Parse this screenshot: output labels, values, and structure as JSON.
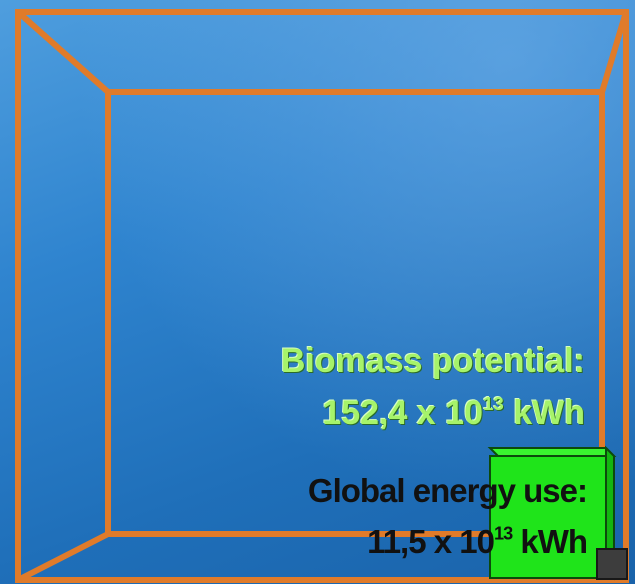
{
  "colors": {
    "large_cube": "#e07b2a",
    "small_cube_front": "#1fe41a",
    "small_cube_top": "#39f52f",
    "small_cube_side": "#13b510",
    "biomass_text": "#a6f36a",
    "energy_text": "#111111"
  },
  "biomass": {
    "title": "Biomass potential:",
    "value_base": "152,4 x 10",
    "value_exponent": "13",
    "value_unit": " kWh"
  },
  "energy": {
    "title": "Global energy use:",
    "value_base": "11,5 x 10",
    "value_exponent": "13",
    "value_unit": " kWh"
  }
}
